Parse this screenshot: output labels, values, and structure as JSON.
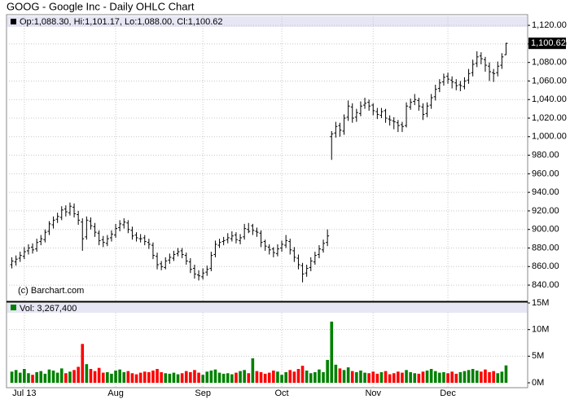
{
  "chart_data": [
    {
      "type": "ohlc",
      "title": "GOOG - Google Inc - Daily OHLC Chart",
      "info": "Op:1,088.30, Hi:1,101.17, Lo:1,088.00, Cl:1,100.62",
      "credit": "(c) Barchart.com",
      "last_label": "1,100.62",
      "color": "#000000",
      "grid": true,
      "ylim": [
        822.5,
        1128
      ],
      "yticks": [
        {
          "value": 840,
          "label": "840.00"
        },
        {
          "value": 860,
          "label": "860.00"
        },
        {
          "value": 880,
          "label": "880.00"
        },
        {
          "value": 900,
          "label": "900.00"
        },
        {
          "value": 920,
          "label": "920.00"
        },
        {
          "value": 940,
          "label": "940.00"
        },
        {
          "value": 960,
          "label": "960.00"
        },
        {
          "value": 980,
          "label": "980.00"
        },
        {
          "value": 1000,
          "label": "1,000.00"
        },
        {
          "value": 1020,
          "label": "1,020.00"
        },
        {
          "value": 1040,
          "label": "1,040.00"
        },
        {
          "value": 1060,
          "label": "1,060.00"
        },
        {
          "value": 1080,
          "label": "1,080.00"
        },
        {
          "value": 1100,
          "label": "1,100.00"
        },
        {
          "value": 1120,
          "label": "1,120.00"
        }
      ],
      "open": [
        862,
        865,
        869,
        871,
        877,
        881,
        879,
        887,
        889,
        898,
        905,
        911,
        913,
        922,
        918,
        924,
        916,
        908,
        892,
        909,
        903,
        896,
        889,
        885,
        891,
        894,
        902,
        905,
        907,
        899,
        894,
        890,
        891,
        886,
        883,
        871,
        863,
        859,
        867,
        869,
        874,
        877,
        872,
        865,
        858,
        851,
        849,
        854,
        858,
        873,
        883,
        887,
        889,
        890,
        894,
        888,
        892,
        900,
        904,
        898,
        896,
        887,
        881,
        879,
        874,
        880,
        883,
        887,
        877,
        869,
        861,
        853,
        859,
        865,
        873,
        878,
        886,
        1000,
        1004,
        1012,
        1006,
        1021,
        1032,
        1021,
        1025,
        1034,
        1037,
        1034,
        1027,
        1023,
        1028,
        1019,
        1017,
        1015,
        1013,
        1012,
        1032,
        1038,
        1039,
        1032,
        1025,
        1034,
        1043,
        1052,
        1059,
        1065,
        1061,
        1058,
        1056,
        1054,
        1061,
        1069,
        1079,
        1087,
        1083,
        1076,
        1069,
        1069,
        1077,
        1088.3
      ],
      "high": [
        870,
        872,
        876,
        881,
        884,
        885,
        890,
        894,
        900,
        909,
        914,
        918,
        925,
        926,
        929,
        928,
        920,
        912,
        914,
        913,
        907,
        899,
        893,
        894,
        899,
        906,
        910,
        912,
        910,
        903,
        897,
        895,
        894,
        890,
        886,
        875,
        866,
        870,
        874,
        877,
        880,
        880,
        875,
        869,
        862,
        856,
        858,
        861,
        876,
        888,
        890,
        892,
        896,
        898,
        897,
        895,
        906,
        907,
        906,
        902,
        899,
        889,
        884,
        881,
        884,
        888,
        894,
        890,
        881,
        873,
        864,
        862,
        870,
        876,
        883,
        889,
        900,
        1006,
        1016,
        1015,
        1024,
        1039,
        1036,
        1030,
        1038,
        1042,
        1040,
        1036,
        1031,
        1031,
        1030,
        1023,
        1021,
        1018,
        1016,
        1037,
        1041,
        1046,
        1042,
        1036,
        1037,
        1046,
        1056,
        1062,
        1068,
        1069,
        1065,
        1062,
        1060,
        1064,
        1073,
        1083,
        1092,
        1091,
        1086,
        1080,
        1073,
        1081,
        1090,
        1101.17
      ],
      "low": [
        858,
        861,
        865,
        868,
        873,
        874,
        876,
        883,
        886,
        894,
        901,
        907,
        910,
        914,
        915,
        913,
        905,
        877,
        889,
        900,
        892,
        883,
        881,
        882,
        887,
        891,
        898,
        901,
        896,
        889,
        887,
        886,
        883,
        879,
        868,
        857,
        856,
        857,
        863,
        866,
        871,
        869,
        862,
        853,
        847,
        845,
        846,
        850,
        855,
        870,
        880,
        883,
        885,
        887,
        885,
        884,
        889,
        896,
        894,
        892,
        881,
        877,
        873,
        870,
        871,
        876,
        880,
        873,
        865,
        857,
        843,
        849,
        855,
        862,
        869,
        875,
        882,
        975,
        999,
        1000,
        1002,
        1017,
        1015,
        1016,
        1022,
        1030,
        1028,
        1023,
        1019,
        1020,
        1015,
        1012,
        1008,
        1005,
        1005,
        1010,
        1029,
        1034,
        1028,
        1018,
        1021,
        1030,
        1039,
        1048,
        1055,
        1057,
        1052,
        1050,
        1049,
        1051,
        1057,
        1065,
        1075,
        1078,
        1070,
        1060,
        1059,
        1065,
        1073,
        1088
      ],
      "close": [
        866,
        868,
        872,
        876,
        880,
        878,
        886,
        890,
        897,
        906,
        910,
        914,
        921,
        919,
        925,
        917,
        910,
        890,
        910,
        904,
        897,
        888,
        886,
        890,
        895,
        901,
        906,
        908,
        900,
        893,
        891,
        890,
        887,
        884,
        872,
        862,
        860,
        866,
        870,
        873,
        876,
        873,
        866,
        857,
        852,
        850,
        853,
        857,
        872,
        884,
        886,
        888,
        891,
        893,
        889,
        891,
        901,
        898,
        899,
        897,
        886,
        882,
        878,
        875,
        879,
        884,
        888,
        878,
        870,
        862,
        852,
        858,
        866,
        872,
        879,
        885,
        893,
        1003,
        1011,
        1007,
        1020,
        1033,
        1020,
        1026,
        1033,
        1036,
        1033,
        1028,
        1024,
        1027,
        1020,
        1018,
        1016,
        1012,
        1011,
        1033,
        1037,
        1040,
        1033,
        1024,
        1033,
        1042,
        1051,
        1058,
        1064,
        1062,
        1059,
        1055,
        1055,
        1060,
        1068,
        1078,
        1086,
        1084,
        1077,
        1070,
        1068,
        1076,
        1086,
        1100.62
      ]
    },
    {
      "type": "bar",
      "info": "Vol: 3,267,400",
      "up_color": "#008000",
      "down_color": "#ff0000",
      "grid": true,
      "ylim": [
        0,
        15000000
      ],
      "yticks": [
        {
          "value": 0,
          "label": "0M"
        },
        {
          "value": 5000000,
          "label": "5M"
        },
        {
          "value": 10000000,
          "label": "10M"
        },
        {
          "value": 15000000,
          "label": "15M"
        }
      ],
      "categories": [
        null,
        null,
        null,
        "Jul 13",
        null,
        null,
        null,
        null,
        null,
        null,
        null,
        null,
        null,
        null,
        null,
        null,
        null,
        null,
        null,
        null,
        null,
        null,
        null,
        null,
        null,
        "Aug",
        null,
        null,
        null,
        null,
        null,
        null,
        null,
        null,
        null,
        null,
        null,
        null,
        null,
        null,
        null,
        null,
        null,
        null,
        null,
        null,
        "Sep",
        null,
        null,
        null,
        null,
        null,
        null,
        null,
        null,
        null,
        null,
        null,
        null,
        null,
        null,
        null,
        null,
        null,
        null,
        "Oct",
        null,
        null,
        null,
        null,
        null,
        null,
        null,
        null,
        null,
        null,
        null,
        null,
        null,
        null,
        null,
        null,
        null,
        null,
        null,
        null,
        null,
        "Nov",
        null,
        null,
        null,
        null,
        null,
        null,
        null,
        null,
        null,
        null,
        null,
        null,
        null,
        null,
        null,
        null,
        null,
        "Dec",
        null,
        null,
        null,
        null,
        null,
        null,
        null,
        null,
        null,
        null,
        null,
        null,
        null,
        null
      ],
      "values": [
        2100000,
        2400000,
        1900000,
        2600000,
        1800000,
        1500000,
        2000000,
        2200000,
        1700000,
        2500000,
        2300000,
        1900000,
        2700000,
        1800000,
        2100000,
        2400000,
        3000000,
        7300000,
        3500000,
        2600000,
        2200000,
        2800000,
        1900000,
        2000000,
        1700000,
        2300000,
        2500000,
        2000000,
        2200000,
        1800000,
        1600000,
        1900000,
        2100000,
        2000000,
        2300000,
        2600000,
        2000000,
        1800000,
        1700000,
        1900000,
        1600000,
        1800000,
        2200000,
        2000000,
        2400000,
        1900000,
        1500000,
        2100000,
        2300000,
        2500000,
        1900000,
        1700000,
        1800000,
        1600000,
        1900000,
        2200000,
        2400000,
        1800000,
        4600000,
        2200000,
        2000000,
        1700000,
        1900000,
        2300000,
        2100000,
        1500000,
        2000000,
        2400000,
        2100000,
        2600000,
        3200000,
        2300000,
        1800000,
        2000000,
        2500000,
        2000000,
        4300000,
        11500000,
        3400000,
        2700000,
        2400000,
        2900000,
        2200000,
        2000000,
        2300000,
        1900000,
        1800000,
        2100000,
        1700000,
        2000000,
        2200000,
        1600000,
        1800000,
        2100000,
        1900000,
        2400000,
        2000000,
        1800000,
        1700000,
        2100000,
        2300000,
        2600000,
        2200000,
        1900000,
        2000000,
        1800000,
        2100000,
        1700000,
        2000000,
        2200000,
        2400000,
        2600000,
        2300000,
        2100000,
        2500000,
        2000000,
        2200000,
        1800000,
        2100000,
        3267400
      ]
    }
  ]
}
